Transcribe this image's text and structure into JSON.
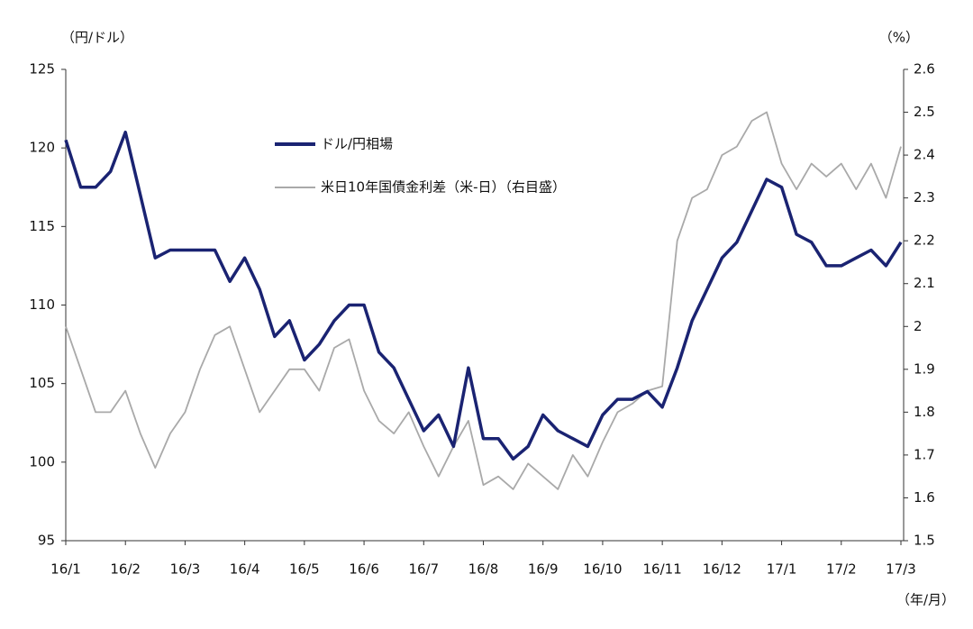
{
  "chart_data": {
    "type": "line",
    "y_label": "（円/ドル）",
    "y2_label": "（%）",
    "x_label": "（年/月）",
    "categories": [
      "16/1",
      null,
      null,
      null,
      "16/2",
      null,
      null,
      null,
      "16/3",
      null,
      null,
      null,
      "16/4",
      null,
      null,
      null,
      "16/5",
      null,
      null,
      null,
      "16/6",
      null,
      null,
      null,
      "16/7",
      null,
      null,
      null,
      "16/8",
      null,
      null,
      null,
      "16/9",
      null,
      null,
      null,
      "16/10",
      null,
      null,
      null,
      "16/11",
      null,
      null,
      null,
      "16/12",
      null,
      null,
      null,
      "17/1",
      null,
      null,
      null,
      "17/2",
      null,
      null,
      null,
      "17/3"
    ],
    "series": [
      {
        "name": "ドル/円相場",
        "color": "#1a2372",
        "axis": "y",
        "values": [
          120.5,
          117.5,
          117.5,
          118.5,
          121,
          117,
          113,
          113.5,
          113.5,
          113.5,
          113.5,
          111.5,
          113,
          111,
          108,
          109,
          106.5,
          107.5,
          109,
          110,
          110,
          107,
          106,
          104,
          102,
          103,
          101,
          106,
          101.5,
          101.5,
          100.2,
          101,
          103,
          102,
          101.5,
          101,
          103,
          104,
          104,
          104.5,
          103.5,
          106,
          109,
          111,
          113,
          114,
          116,
          118,
          117.5,
          114.5,
          114,
          112.5,
          112.5,
          113,
          113.5,
          112.5,
          114
        ]
      },
      {
        "name": "米日10年国債金利差（米-日）（右目盛）",
        "color": "#a9a9a9",
        "axis": "y2",
        "values": [
          2.0,
          1.9,
          1.8,
          1.8,
          1.85,
          1.75,
          1.67,
          1.75,
          1.8,
          1.9,
          1.98,
          2.0,
          1.9,
          1.8,
          1.85,
          1.9,
          1.9,
          1.85,
          1.95,
          1.97,
          1.85,
          1.78,
          1.75,
          1.8,
          1.72,
          1.65,
          1.72,
          1.78,
          1.63,
          1.65,
          1.62,
          1.68,
          1.65,
          1.62,
          1.7,
          1.65,
          1.73,
          1.8,
          1.82,
          1.85,
          1.86,
          2.2,
          2.3,
          2.32,
          2.4,
          2.42,
          2.48,
          2.5,
          2.38,
          2.32,
          2.38,
          2.35,
          2.38,
          2.32,
          2.38,
          2.3,
          2.42
        ]
      }
    ],
    "ylim": [
      95,
      125
    ],
    "yticks": [
      95,
      100,
      105,
      110,
      115,
      120,
      125
    ],
    "y2lim": [
      1.5,
      2.6
    ],
    "y2ticks": [
      1.5,
      1.6,
      1.7,
      1.8,
      1.9,
      2.0,
      2.1,
      2.2,
      2.3,
      2.4,
      2.5,
      2.6
    ]
  }
}
